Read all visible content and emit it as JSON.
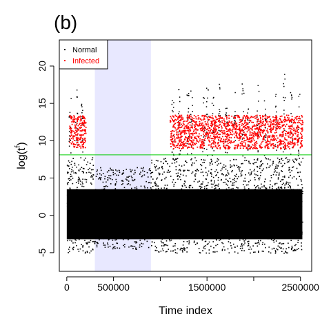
{
  "panel_label": "(b)",
  "chart_data": {
    "type": "scatter",
    "xlabel": "Time index",
    "ylabel": "log(t",
    "ylabel_superscript": "f",
    "ylabel_close": ")",
    "xlim": [
      -80000,
      2620000
    ],
    "ylim": [
      -7.5,
      23.5
    ],
    "xticks": [
      0,
      500000,
      1000000,
      1500000,
      2000000,
      2500000
    ],
    "xtick_labels": [
      "0",
      "500000",
      "",
      "1500000",
      "",
      "2500000"
    ],
    "yticks": [
      -5,
      0,
      5,
      10,
      15,
      20
    ],
    "ytick_labels": [
      "-5",
      "0",
      "5",
      "10",
      "15",
      "20"
    ],
    "legend_position": "top-left",
    "series": [
      {
        "name": "Normal",
        "color": "#000000",
        "band_y": [
          -4.5,
          7.5
        ],
        "band_y_gap": [
          -5.0,
          7.8
        ],
        "x_range": [
          0,
          2520000
        ],
        "gap_x": [
          300000,
          900000
        ]
      },
      {
        "name": "Infected",
        "color": "#ff0000",
        "band_y": [
          9.0,
          13.5
        ],
        "segments": [
          [
            20000,
            200000
          ],
          [
            1100000,
            2520000
          ]
        ]
      }
    ],
    "spikes_x": [
      [
        30000,
        16.5
      ],
      [
        100000,
        17.5
      ],
      [
        160000,
        16.2
      ],
      [
        1130000,
        15.5
      ],
      [
        1200000,
        17.0
      ],
      [
        1290000,
        16.5
      ],
      [
        1330000,
        18.0
      ],
      [
        1460000,
        16.0
      ],
      [
        1500000,
        17.5
      ],
      [
        1560000,
        17.0
      ],
      [
        1630000,
        18.0
      ],
      [
        1700000,
        16.0
      ],
      [
        1790000,
        17.0
      ],
      [
        1880000,
        18.5
      ],
      [
        1940000,
        16.5
      ],
      [
        2040000,
        17.5
      ],
      [
        2120000,
        17.0
      ],
      [
        2230000,
        17.0
      ],
      [
        2320000,
        19.0
      ],
      [
        2400000,
        17.0
      ],
      [
        2480000,
        17.5
      ]
    ],
    "threshold_y": 8.1,
    "threshold_color": "#00cc00",
    "shaded_region_x": [
      300000,
      900000
    ],
    "shaded_color": "#e8e8ff"
  }
}
